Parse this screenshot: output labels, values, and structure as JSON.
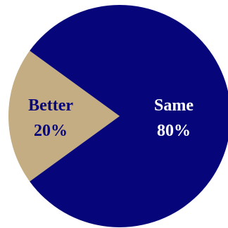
{
  "chart_data": {
    "type": "pie",
    "title": "",
    "slices": [
      {
        "label": "Same",
        "value": 80,
        "display": "80%",
        "color": "#06067a",
        "label_color": "#ffffff"
      },
      {
        "label": "Better",
        "value": 20,
        "display": "20%",
        "color": "#c4ad82",
        "label_color": "#06067a"
      }
    ]
  }
}
